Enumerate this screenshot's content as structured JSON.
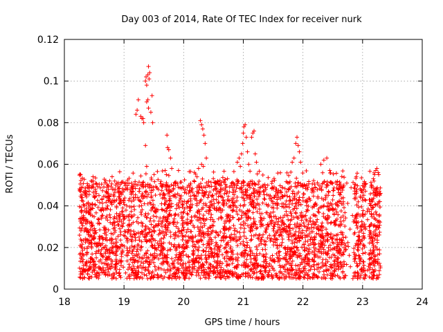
{
  "chart_data": {
    "type": "scatter",
    "title": "Day 003 of 2014, Rate Of TEC Index for receiver nurk",
    "xlabel": "GPS time / hours",
    "ylabel": "ROTI / TECUs",
    "xlim": [
      18,
      24
    ],
    "ylim": [
      0,
      0.12
    ],
    "xticks": [
      "18",
      "19",
      "20",
      "21",
      "22",
      "23",
      "24"
    ],
    "yticks": [
      "0",
      "0.02",
      "0.04",
      "0.06",
      "0.08",
      "0.1",
      "0.12"
    ],
    "grid": true,
    "marker": "+",
    "color": "#ff0000",
    "series": [
      {
        "name": "ROTI",
        "cluster_note": "dense cloud of roughly 4000 points between 18.25 h and 23.3 h, values 0.005 to 0.055 TECU/s, with isolated peaks listed below",
        "points": [
          [
            18.27,
            0.047
          ],
          [
            18.3,
            0.044
          ],
          [
            18.33,
            0.04
          ],
          [
            18.36,
            0.046
          ],
          [
            18.4,
            0.041
          ],
          [
            18.45,
            0.052
          ],
          [
            18.48,
            0.054
          ],
          [
            18.52,
            0.048
          ],
          [
            18.58,
            0.045
          ],
          [
            18.63,
            0.043
          ],
          [
            18.7,
            0.047
          ],
          [
            18.76,
            0.052
          ],
          [
            18.8,
            0.054
          ],
          [
            18.86,
            0.05
          ],
          [
            18.92,
            0.047
          ],
          [
            19.2,
            0.084
          ],
          [
            19.22,
            0.086
          ],
          [
            19.24,
            0.091
          ],
          [
            19.28,
            0.083
          ],
          [
            19.3,
            0.082
          ],
          [
            19.32,
            0.082
          ],
          [
            19.33,
            0.08
          ],
          [
            19.36,
            0.1
          ],
          [
            19.37,
            0.102
          ],
          [
            19.38,
            0.098
          ],
          [
            19.4,
            0.103
          ],
          [
            19.41,
            0.107
          ],
          [
            19.42,
            0.101
          ],
          [
            19.43,
            0.104
          ],
          [
            19.38,
            0.09
          ],
          [
            19.4,
            0.091
          ],
          [
            19.41,
            0.087
          ],
          [
            19.45,
            0.085
          ],
          [
            19.47,
            0.093
          ],
          [
            19.48,
            0.08
          ],
          [
            19.36,
            0.069
          ],
          [
            19.38,
            0.059
          ],
          [
            19.72,
            0.074
          ],
          [
            19.73,
            0.068
          ],
          [
            19.75,
            0.067
          ],
          [
            19.78,
            0.063
          ],
          [
            19.8,
            0.058
          ],
          [
            19.69,
            0.057
          ],
          [
            19.71,
            0.055
          ],
          [
            20.28,
            0.081
          ],
          [
            20.3,
            0.079
          ],
          [
            20.32,
            0.077
          ],
          [
            20.34,
            0.074
          ],
          [
            20.36,
            0.07
          ],
          [
            20.38,
            0.063
          ],
          [
            20.33,
            0.059
          ],
          [
            20.3,
            0.06
          ],
          [
            20.25,
            0.058
          ],
          [
            20.9,
            0.061
          ],
          [
            20.93,
            0.063
          ],
          [
            20.95,
            0.059
          ],
          [
            20.97,
            0.065
          ],
          [
            20.99,
            0.07
          ],
          [
            21.0,
            0.075
          ],
          [
            21.01,
            0.078
          ],
          [
            21.03,
            0.079
          ],
          [
            21.05,
            0.073
          ],
          [
            21.07,
            0.066
          ],
          [
            21.09,
            0.06
          ],
          [
            21.14,
            0.073
          ],
          [
            21.16,
            0.075
          ],
          [
            21.18,
            0.076
          ],
          [
            21.2,
            0.065
          ],
          [
            21.22,
            0.061
          ],
          [
            21.82,
            0.061
          ],
          [
            21.85,
            0.063
          ],
          [
            21.88,
            0.07
          ],
          [
            21.9,
            0.073
          ],
          [
            21.92,
            0.069
          ],
          [
            21.94,
            0.066
          ],
          [
            21.96,
            0.061
          ],
          [
            22.3,
            0.06
          ],
          [
            22.35,
            0.062
          ],
          [
            22.4,
            0.063
          ],
          [
            22.45,
            0.057
          ],
          [
            23.15,
            0.05
          ],
          [
            23.18,
            0.053
          ],
          [
            23.2,
            0.055
          ],
          [
            23.22,
            0.057
          ],
          [
            23.24,
            0.058
          ],
          [
            23.26,
            0.056
          ],
          [
            23.27,
            0.055
          ]
        ]
      }
    ]
  }
}
